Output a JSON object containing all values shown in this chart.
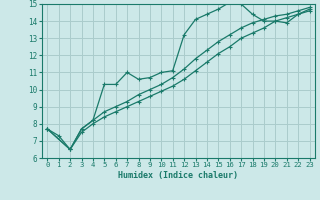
{
  "bg_color": "#cce8e8",
  "grid_color": "#aacccc",
  "line_color": "#1a7a6a",
  "xlabel": "Humidex (Indice chaleur)",
  "xlim": [
    -0.5,
    23.5
  ],
  "ylim": [
    6,
    15
  ],
  "yticks": [
    6,
    7,
    8,
    9,
    10,
    11,
    12,
    13,
    14,
    15
  ],
  "xticks": [
    0,
    1,
    2,
    3,
    4,
    5,
    6,
    7,
    8,
    9,
    10,
    11,
    12,
    13,
    14,
    15,
    16,
    17,
    18,
    19,
    20,
    21,
    22,
    23
  ],
  "line1_x": [
    0,
    1,
    2,
    3,
    4,
    5,
    6,
    7,
    8,
    9,
    10,
    11,
    12,
    13,
    14,
    15,
    16,
    17,
    18,
    19,
    20,
    21,
    22,
    23
  ],
  "line1_y": [
    7.7,
    7.3,
    6.5,
    7.7,
    8.2,
    10.3,
    10.3,
    11.0,
    10.6,
    10.7,
    11.0,
    11.1,
    13.2,
    14.1,
    14.4,
    14.7,
    15.1,
    15.0,
    14.4,
    14.0,
    14.0,
    13.9,
    14.4,
    14.7
  ],
  "line2_x": [
    0,
    2,
    3,
    4,
    5,
    6,
    7,
    8,
    9,
    10,
    11,
    12,
    13,
    14,
    15,
    16,
    17,
    18,
    19,
    20,
    21,
    22,
    23
  ],
  "line2_y": [
    7.7,
    6.5,
    7.5,
    8.0,
    8.4,
    8.7,
    9.0,
    9.3,
    9.6,
    9.9,
    10.2,
    10.6,
    11.1,
    11.6,
    12.1,
    12.5,
    13.0,
    13.3,
    13.6,
    14.0,
    14.2,
    14.4,
    14.6
  ],
  "line3_x": [
    0,
    2,
    3,
    4,
    5,
    6,
    7,
    8,
    9,
    10,
    11,
    12,
    13,
    14,
    15,
    16,
    17,
    18,
    19,
    20,
    21,
    22,
    23
  ],
  "line3_y": [
    7.7,
    6.5,
    7.7,
    8.2,
    8.7,
    9.0,
    9.3,
    9.7,
    10.0,
    10.3,
    10.7,
    11.2,
    11.8,
    12.3,
    12.8,
    13.2,
    13.6,
    13.9,
    14.1,
    14.3,
    14.4,
    14.6,
    14.8
  ]
}
